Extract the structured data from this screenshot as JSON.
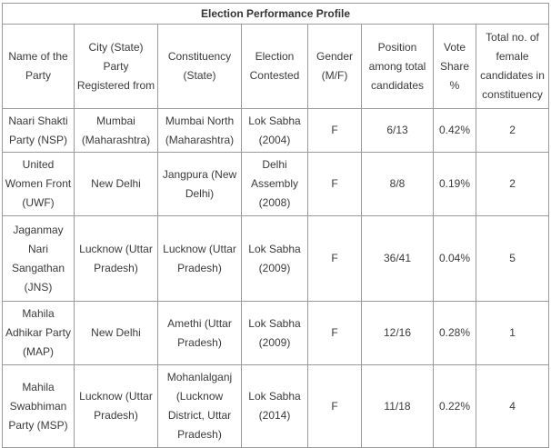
{
  "title": "Election Performance Profile",
  "columns": [
    "Name of the Party",
    "City (State) Party Registered from",
    "Constituency (State)",
    "Election Contested",
    "Gender (M/F)",
    "Position among total candidates",
    "Vote Share %",
    "Total no. of female candidates in constituency"
  ],
  "rows": [
    [
      "Naari Shakti Party (NSP)",
      "Mumbai (Maharashtra)",
      "Mumbai North (Maharashtra)",
      "Lok Sabha (2004)",
      "F",
      "6/13",
      "0.42%",
      "2"
    ],
    [
      "United Women Front (UWF)",
      "New Delhi",
      "Jangpura (New Delhi)",
      "Delhi Assembly (2008)",
      "F",
      "8/8",
      "0.19%",
      "2"
    ],
    [
      "Jaganmay Nari Sangathan (JNS)",
      "Lucknow (Uttar Pradesh)",
      "Lucknow (Uttar Pradesh)",
      "Lok Sabha (2009)",
      "F",
      "36/41",
      "0.04%",
      "5"
    ],
    [
      "Mahila Adhikar Party (MAP)",
      "New Delhi",
      "Amethi (Uttar Pradesh)",
      "Lok Sabha (2009)",
      "F",
      "12/16",
      "0.28%",
      "1"
    ],
    [
      "Mahila Swabhiman Party (MSP)",
      "Lucknow (Uttar Pradesh)",
      "Mohanlalganj (Lucknow District, Uttar Pradesh)",
      "Lok Sabha (2014)",
      "F",
      "11/18",
      "0.22%",
      "4"
    ]
  ]
}
